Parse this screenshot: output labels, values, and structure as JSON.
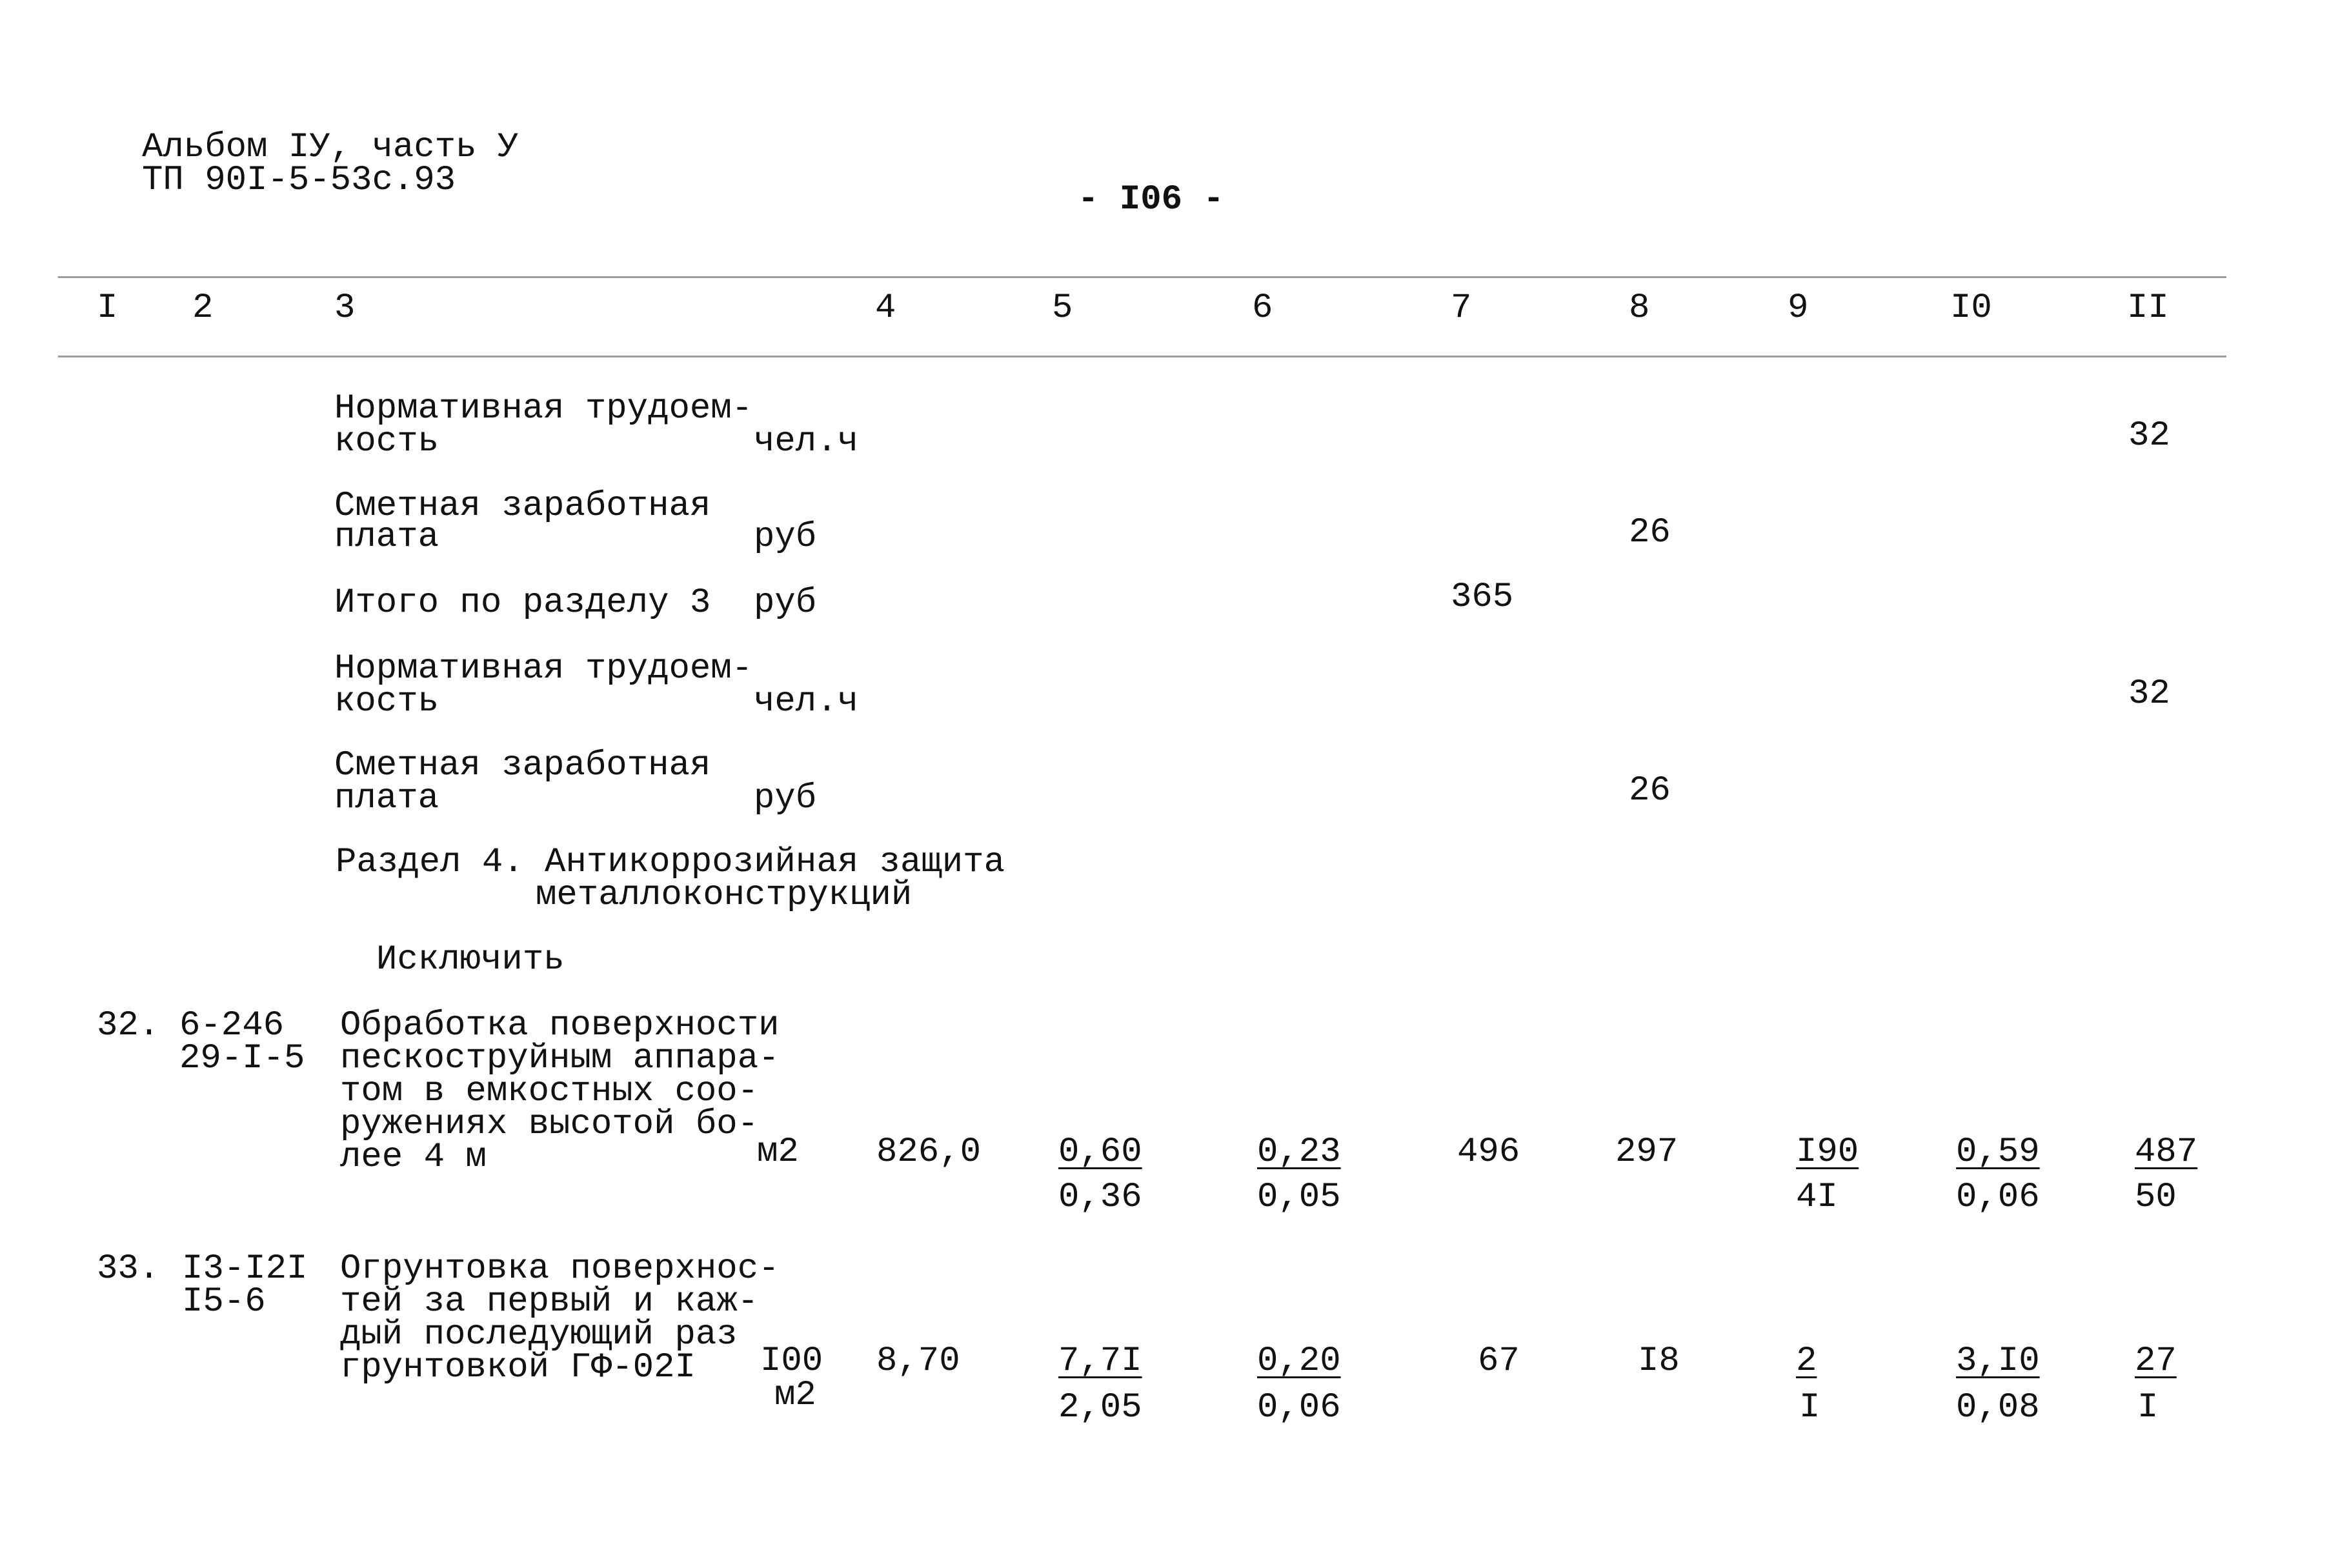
{
  "header": {
    "album": "Альбом IУ, часть У",
    "project": "ТП 90I-5-53с.93",
    "page_number": "- I06 -"
  },
  "columns": [
    "I",
    "2",
    "3",
    "4",
    "5",
    "6",
    "7",
    "8",
    "9",
    "I0",
    "II"
  ],
  "summary": [
    {
      "label_lines": [
        "Нормативная трудоем-",
        "кость"
      ],
      "unit": "чел.ч",
      "col11": "32"
    },
    {
      "label_lines": [
        "Сметная заработная",
        "плата"
      ],
      "unit": "руб",
      "col8": "26"
    },
    {
      "label_lines": [
        "Итого по разделу 3"
      ],
      "unit": "руб",
      "col7": "365"
    },
    {
      "label_lines": [
        "Нормативная трудоем-",
        "кость"
      ],
      "unit": "чел.ч",
      "col11": "32"
    },
    {
      "label_lines": [
        "Сметная заработная",
        "плата"
      ],
      "unit": "руб",
      "col8": "26"
    }
  ],
  "section": {
    "title_line1": "Раздел 4. Антикоррозийная защита",
    "title_line2": "металлоконструкций",
    "exclude": "Исключить"
  },
  "rows": [
    {
      "no": "32.",
      "code1": "6-246",
      "code2": "29-I-5",
      "desc": "Обработка поверхности\nпескоструйным аппара-\nтом в емкостных соо-\nружениях высотой бо-\nлее 4 м",
      "unit1": "м2",
      "unit2": "",
      "qty": "826,0",
      "c5": [
        "0,60",
        "0,36"
      ],
      "c6": [
        "0,23",
        "0,05"
      ],
      "c7": "496",
      "c8": "297",
      "c9": [
        "I90",
        "4I"
      ],
      "c10": [
        "0,59",
        "0,06"
      ],
      "c11": [
        "487",
        "50"
      ]
    },
    {
      "no": "33.",
      "code1": "I3-I2I",
      "code2": "I5-6",
      "desc": "Огрунтовка поверхнос-\nтей за первый и каж-\nдый последующий раз\nгрунтовкой ГФ-02I",
      "unit1": "I00",
      "unit2": "м2",
      "qty": "8,70",
      "c5": [
        "7,7I",
        "2,05"
      ],
      "c6": [
        "0,20",
        "0,06"
      ],
      "c7": "67",
      "c8": "I8",
      "c9": [
        "2",
        "I"
      ],
      "c10": [
        "3,I0",
        "0,08"
      ],
      "c11": [
        "27",
        "I"
      ]
    }
  ]
}
